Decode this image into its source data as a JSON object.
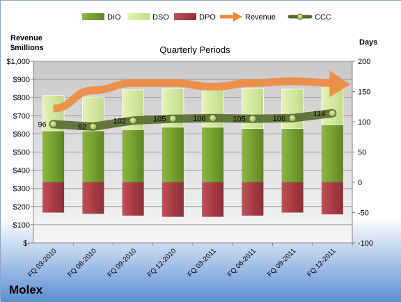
{
  "chart_data": {
    "type": "bar",
    "title": "Quarterly Periods",
    "company": "Molex",
    "y_left_label": [
      "Revenue",
      "$millions"
    ],
    "y_right_label": "Days",
    "categories": [
      "FQ 03-2010",
      "FQ 06-2010",
      "FQ 09-2010",
      "FQ 12-2010",
      "FQ 03-2011",
      "FQ 06-2011",
      "FQ 09-2011",
      "FQ 12-2011"
    ],
    "left_axis": {
      "min": 0,
      "max": 1000,
      "step": 100,
      "ticks": [
        "$-",
        "$100",
        "$200",
        "$300",
        "$400",
        "$500",
        "$600",
        "$700",
        "$800",
        "$900",
        "$1,000"
      ]
    },
    "right_axis": {
      "min": -100,
      "max": 200,
      "step": 50,
      "ticks": [
        "-100",
        "-50",
        "0",
        "50",
        "100",
        "150",
        "200"
      ]
    },
    "legend": [
      {
        "name": "DIO",
        "kind": "bar",
        "color": "#77a032"
      },
      {
        "name": "DSO",
        "kind": "bar",
        "color": "#d9eca4"
      },
      {
        "name": "DPO",
        "kind": "bar",
        "color": "#b2434a"
      },
      {
        "name": "Revenue",
        "kind": "arrow",
        "color": "#ee8a3c"
      },
      {
        "name": "CCC",
        "kind": "line",
        "color": "#556b2f"
      }
    ],
    "series": [
      {
        "name": "DIO",
        "axis": "right",
        "values": [
          85,
          85,
          87,
          91,
          91,
          89,
          89,
          95
        ]
      },
      {
        "name": "DSO",
        "axis": "right",
        "values": [
          58,
          56,
          66,
          64,
          66,
          66,
          65,
          64
        ]
      },
      {
        "name": "DPO",
        "axis": "right",
        "values": [
          -50,
          -52,
          -55,
          -57,
          -57,
          -55,
          -50,
          -53
        ]
      },
      {
        "name": "Revenue",
        "axis": "left",
        "values": [
          740,
          840,
          880,
          880,
          860,
          880,
          890,
          880
        ]
      },
      {
        "name": "CCC",
        "axis": "right",
        "values": [
          96,
          92,
          102,
          105,
          106,
          105,
          106,
          114
        ]
      }
    ],
    "ccc_labels": [
      "96",
      "92",
      "102",
      "105",
      "106",
      "105",
      "106",
      "114"
    ],
    "grid": true,
    "legend_position": "top"
  },
  "colors": {
    "plot_bg_top": "#c8c8c8",
    "plot_bg_bottom": "#f4f4f4",
    "page_bg_top": "#ffffff",
    "page_bg_bottom": "#5b8fd1"
  }
}
